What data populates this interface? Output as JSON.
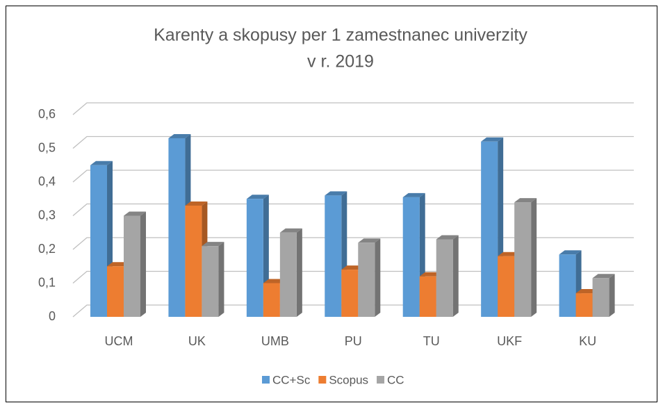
{
  "chart_data": {
    "type": "bar3d",
    "title": [
      "Karenty a skopusy per 1 zamestnanec univerzity",
      "v r. 2019"
    ],
    "categories": [
      "UCM",
      "UK",
      "UMB",
      "PU",
      "TU",
      "UKF",
      "KU"
    ],
    "series": [
      {
        "name": "CC+Sc",
        "color": "#5b9bd5",
        "values": [
          0.45,
          0.53,
          0.35,
          0.36,
          0.355,
          0.52,
          0.185
        ]
      },
      {
        "name": "Scopus",
        "color": "#ed7d31",
        "values": [
          0.15,
          0.33,
          0.1,
          0.14,
          0.12,
          0.18,
          0.07
        ]
      },
      {
        "name": "CC",
        "color": "#a5a5a5",
        "values": [
          0.3,
          0.21,
          0.25,
          0.22,
          0.23,
          0.34,
          0.115
        ]
      }
    ],
    "ylim": [
      0,
      0.6
    ],
    "yticks": [
      0,
      {
        "value": 0.1,
        "label": "0,1"
      },
      {
        "value": 0.2,
        "label": "0,2"
      },
      {
        "value": 0.3,
        "label": "0,3"
      },
      {
        "value": 0.4,
        "label": "0,4"
      },
      {
        "value": 0.5,
        "label": "0,5"
      },
      {
        "value": 0.6,
        "label": "0,6"
      }
    ],
    "grid": true,
    "legend": "bottom"
  }
}
